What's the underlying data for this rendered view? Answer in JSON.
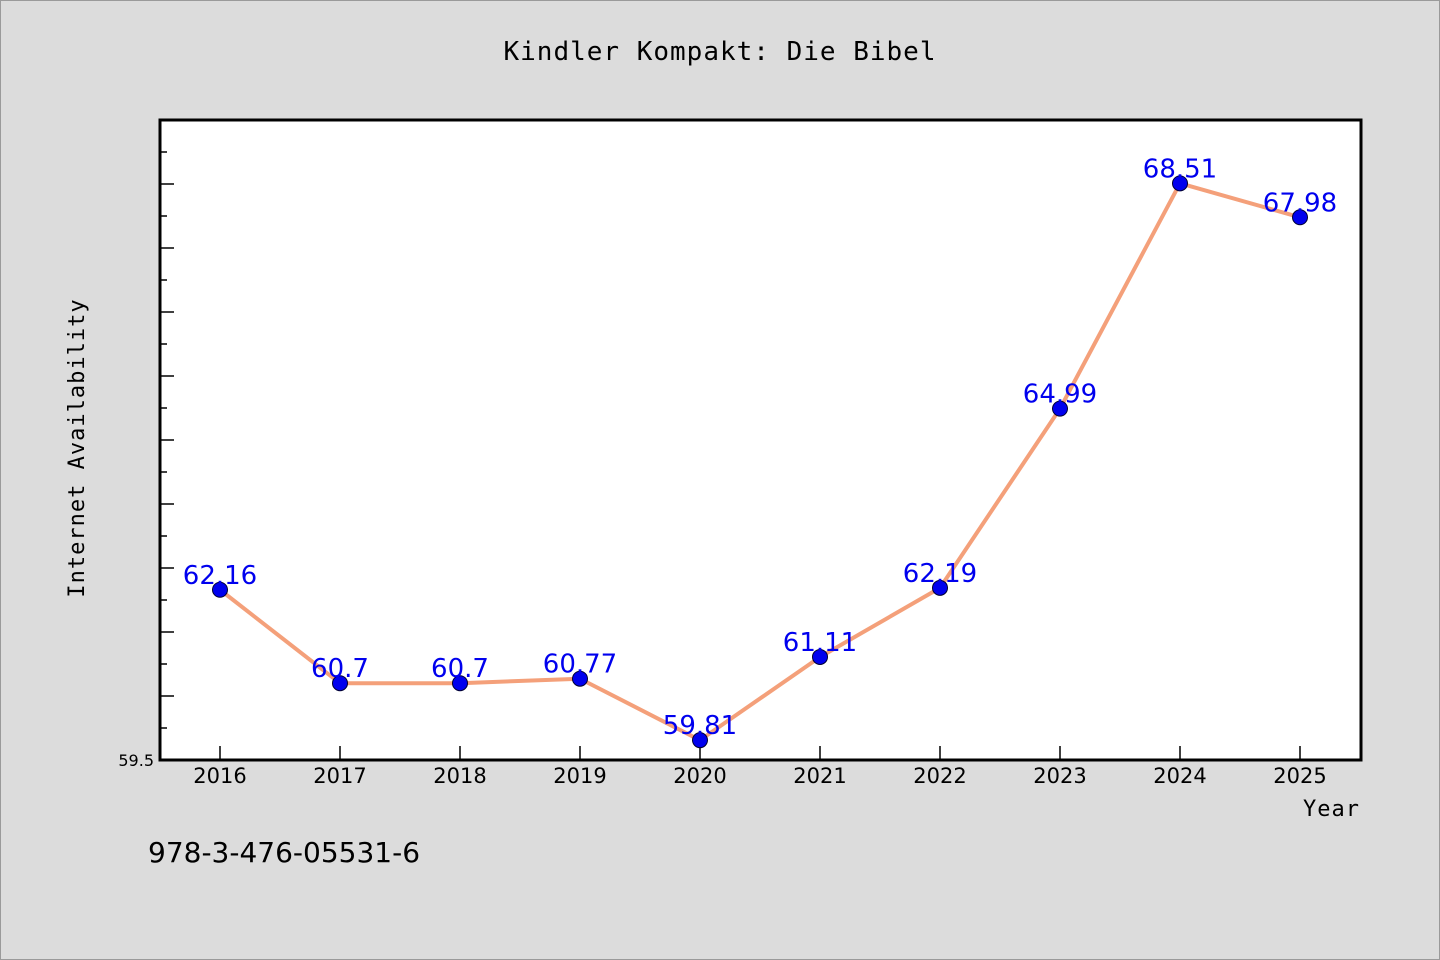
{
  "chart_data": {
    "type": "line",
    "title": "Kindler Kompakt: Die Bibel",
    "xlabel": "Year",
    "ylabel": "Internet Availability",
    "categories": [
      "2016",
      "2017",
      "2018",
      "2019",
      "2020",
      "2021",
      "2022",
      "2023",
      "2024",
      "2025"
    ],
    "values": [
      62.16,
      60.7,
      60.7,
      60.77,
      59.81,
      61.11,
      62.19,
      64.99,
      68.51,
      67.98
    ],
    "ylim": [
      59.5,
      69.5
    ],
    "yticks_labeled": [
      "59.5"
    ],
    "grid": false,
    "legend": "none",
    "line_color": "#f4a07a",
    "marker_color": "#0000ee",
    "label_color": "#0000ee"
  },
  "footnote": "978-3-476-05531-6"
}
